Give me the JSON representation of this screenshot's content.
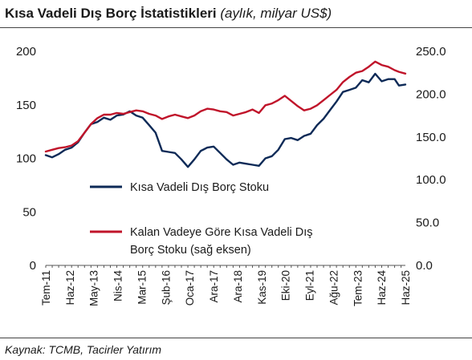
{
  "header": {
    "title": "Kısa Vadeli Dış Borç İstatistikleri",
    "subtitle": "(aylık, milyar US$)"
  },
  "footer": {
    "source": "Kaynak: TCMB, Tacirler Yatırım"
  },
  "colors": {
    "series_navy": "#0d2a57",
    "series_red": "#c0142a",
    "axis": "#555555"
  },
  "chart_data": {
    "type": "line",
    "title": "Kısa Vadeli Dış Borç İstatistikleri",
    "xlabel": "",
    "ylabel": "",
    "grid": false,
    "legend_position": "center-left",
    "x_ticks": [
      "Tem-11",
      "Haz-12",
      "May-13",
      "Nis-14",
      "Mar-15",
      "Şub-16",
      "Oca-17",
      "Ara-17",
      "Ara-18",
      "Kas-19",
      "Eki-20",
      "Eyl-21",
      "Ağu-22",
      "Tem-23",
      "Haz-24",
      "Haz-25"
    ],
    "x_range": [
      "2011-07",
      "2025-06"
    ],
    "y_left": {
      "min": 0,
      "max": 200,
      "ticks": [
        "0",
        "50",
        "100",
        "150",
        "200"
      ]
    },
    "y_right": {
      "min": 0,
      "max": 250,
      "ticks": [
        "0.0",
        "50.0",
        "100.0",
        "150.0",
        "200.0",
        "250.0"
      ]
    },
    "series": [
      {
        "name": "Kısa Vadeli Dış Borç Stoku",
        "axis": "left",
        "color": "#0d2a57",
        "points": [
          [
            "2011-07",
            103
          ],
          [
            "2011-10",
            101
          ],
          [
            "2012-01",
            104
          ],
          [
            "2012-04",
            108
          ],
          [
            "2012-07",
            110
          ],
          [
            "2012-10",
            115
          ],
          [
            "2013-01",
            124
          ],
          [
            "2013-04",
            132
          ],
          [
            "2013-07",
            134
          ],
          [
            "2013-10",
            138
          ],
          [
            "2014-01",
            136
          ],
          [
            "2014-04",
            140
          ],
          [
            "2014-07",
            141
          ],
          [
            "2014-10",
            144
          ],
          [
            "2015-01",
            140
          ],
          [
            "2015-04",
            138
          ],
          [
            "2015-07",
            131
          ],
          [
            "2015-10",
            124
          ],
          [
            "2016-01",
            107
          ],
          [
            "2016-04",
            106
          ],
          [
            "2016-07",
            105
          ],
          [
            "2016-10",
            99
          ],
          [
            "2017-01",
            92
          ],
          [
            "2017-04",
            99
          ],
          [
            "2017-07",
            107
          ],
          [
            "2017-10",
            110
          ],
          [
            "2018-01",
            111
          ],
          [
            "2018-04",
            105
          ],
          [
            "2018-07",
            99
          ],
          [
            "2018-10",
            94
          ],
          [
            "2019-01",
            96
          ],
          [
            "2019-04",
            95
          ],
          [
            "2019-07",
            94
          ],
          [
            "2019-10",
            93
          ],
          [
            "2020-01",
            100
          ],
          [
            "2020-04",
            102
          ],
          [
            "2020-07",
            108
          ],
          [
            "2020-10",
            118
          ],
          [
            "2021-01",
            119
          ],
          [
            "2021-04",
            117
          ],
          [
            "2021-07",
            121
          ],
          [
            "2021-10",
            123
          ],
          [
            "2022-01",
            131
          ],
          [
            "2022-04",
            137
          ],
          [
            "2022-07",
            145
          ],
          [
            "2022-10",
            153
          ],
          [
            "2023-01",
            162
          ],
          [
            "2023-04",
            164
          ],
          [
            "2023-07",
            166
          ],
          [
            "2023-10",
            173
          ],
          [
            "2024-01",
            171
          ],
          [
            "2024-04",
            179
          ],
          [
            "2024-07",
            172
          ],
          [
            "2024-10",
            174
          ],
          [
            "2025-01",
            174
          ],
          [
            "2025-03",
            168
          ],
          [
            "2025-06",
            169
          ]
        ]
      },
      {
        "name": "Kalan Vadeye Göre Kısa Vadeli Dış Borç Stoku (sağ eksen)",
        "axis": "right",
        "color": "#c0142a",
        "points": [
          [
            "2011-07",
            133
          ],
          [
            "2011-10",
            135
          ],
          [
            "2012-01",
            137
          ],
          [
            "2012-04",
            138
          ],
          [
            "2012-07",
            140
          ],
          [
            "2012-10",
            145
          ],
          [
            "2013-01",
            155
          ],
          [
            "2013-04",
            165
          ],
          [
            "2013-07",
            172
          ],
          [
            "2013-10",
            176
          ],
          [
            "2014-01",
            176
          ],
          [
            "2014-04",
            178
          ],
          [
            "2014-07",
            177
          ],
          [
            "2014-10",
            179
          ],
          [
            "2015-01",
            181
          ],
          [
            "2015-04",
            180
          ],
          [
            "2015-07",
            177
          ],
          [
            "2015-10",
            175
          ],
          [
            "2016-01",
            171
          ],
          [
            "2016-04",
            174
          ],
          [
            "2016-07",
            176
          ],
          [
            "2016-10",
            174
          ],
          [
            "2017-01",
            172
          ],
          [
            "2017-04",
            175
          ],
          [
            "2017-07",
            180
          ],
          [
            "2017-10",
            183
          ],
          [
            "2018-01",
            182
          ],
          [
            "2018-04",
            180
          ],
          [
            "2018-07",
            179
          ],
          [
            "2018-10",
            175
          ],
          [
            "2019-01",
            177
          ],
          [
            "2019-04",
            179
          ],
          [
            "2019-07",
            182
          ],
          [
            "2019-10",
            178
          ],
          [
            "2020-01",
            187
          ],
          [
            "2020-04",
            189
          ],
          [
            "2020-07",
            193
          ],
          [
            "2020-10",
            198
          ],
          [
            "2021-01",
            192
          ],
          [
            "2021-04",
            186
          ],
          [
            "2021-07",
            181
          ],
          [
            "2021-10",
            183
          ],
          [
            "2022-01",
            187
          ],
          [
            "2022-04",
            193
          ],
          [
            "2022-07",
            199
          ],
          [
            "2022-10",
            205
          ],
          [
            "2023-01",
            214
          ],
          [
            "2023-04",
            220
          ],
          [
            "2023-07",
            225
          ],
          [
            "2023-10",
            227
          ],
          [
            "2024-01",
            232
          ],
          [
            "2024-04",
            238
          ],
          [
            "2024-07",
            234
          ],
          [
            "2024-10",
            232
          ],
          [
            "2025-01",
            228
          ],
          [
            "2025-03",
            226
          ],
          [
            "2025-06",
            224
          ]
        ]
      }
    ],
    "legend": {
      "navy_label": "Kısa Vadeli Dış Borç Stoku",
      "red_label_line1": "Kalan Vadeye Göre Kısa Vadeli Dış",
      "red_label_line2": "Borç Stoku (sağ eksen)"
    }
  }
}
